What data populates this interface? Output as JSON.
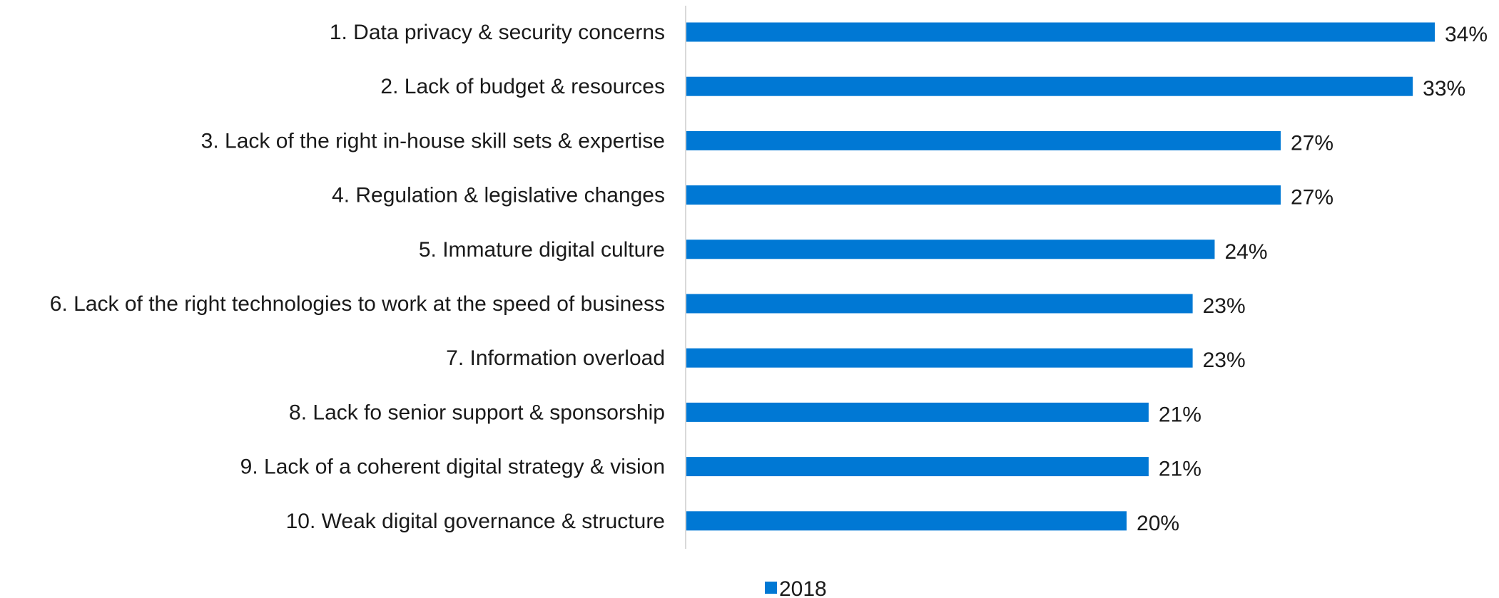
{
  "chart_data": {
    "type": "bar",
    "orientation": "horizontal",
    "categories": [
      "1. Data privacy & security concerns",
      "2. Lack of budget & resources",
      "3. Lack of the right in-house skill sets & expertise",
      "4. Regulation & legislative changes",
      "5. Immature digital culture",
      "6. Lack of the right technologies to work at the speed of business",
      "7. Information overload",
      "8. Lack fo senior support & sponsorship",
      "9. Lack of a coherent digital strategy & vision",
      "10. Weak digital governance & structure"
    ],
    "series": [
      {
        "name": "2018",
        "values": [
          34,
          33,
          27,
          27,
          24,
          23,
          23,
          21,
          21,
          20
        ],
        "labels": [
          "34%",
          "33%",
          "27%",
          "27%",
          "24%",
          "23%",
          "23%",
          "21%",
          "21%",
          "20%"
        ],
        "color": "#0078D4"
      }
    ],
    "xlim": [
      0,
      34
    ],
    "grid": false,
    "legend_position": "bottom"
  }
}
